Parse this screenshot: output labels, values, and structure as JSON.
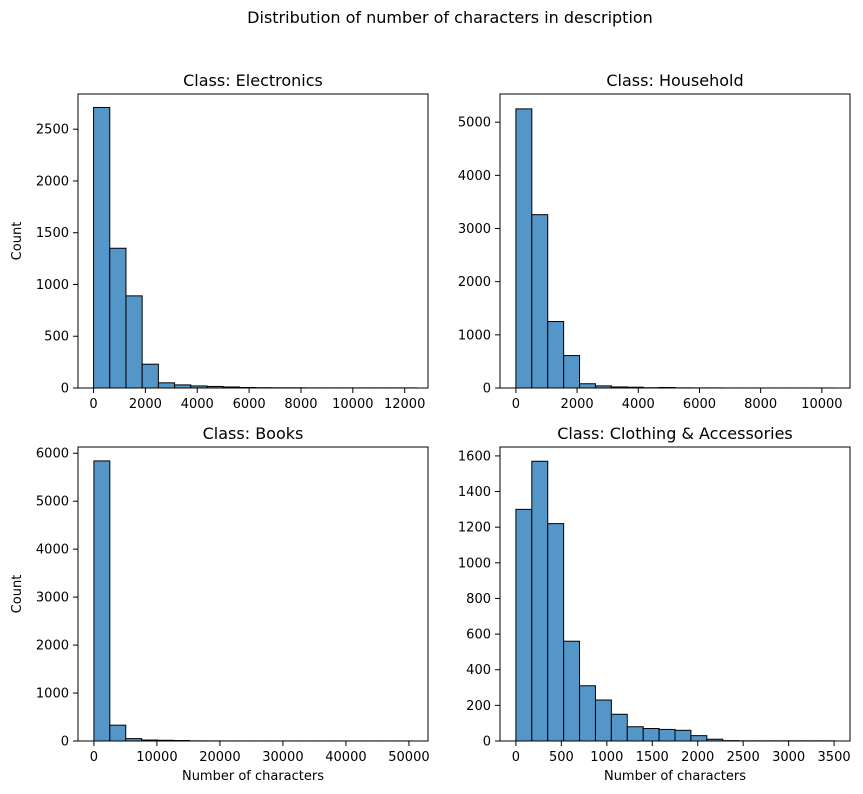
{
  "figure": {
    "suptitle": "Distribution of number of characters in description"
  },
  "style": {
    "bar_fill": "#5596c8",
    "bar_edge": "#000000",
    "axis_color": "#000000"
  },
  "chart_data": [
    {
      "type": "bar",
      "title": "Class: Electronics",
      "xlabel": "",
      "ylabel": "Count",
      "xlim": [
        -600,
        12900
      ],
      "ylim": [
        0,
        2840
      ],
      "xticks": [
        0,
        2000,
        4000,
        6000,
        8000,
        10000,
        12000
      ],
      "yticks": [
        0,
        500,
        1000,
        1500,
        2000,
        2500
      ],
      "bin_edges": [
        0,
        625,
        1250,
        1875,
        2500,
        3125,
        3750,
        4375,
        5000,
        5625,
        6250,
        6875,
        7500,
        8125,
        8750,
        9375,
        10000,
        10625,
        11250,
        11875,
        12500
      ],
      "values": [
        2710,
        1350,
        890,
        230,
        50,
        30,
        20,
        15,
        10,
        5,
        3,
        2,
        2,
        1,
        1,
        1,
        1,
        1,
        1,
        1
      ]
    },
    {
      "type": "bar",
      "title": "Class: Household",
      "xlabel": "",
      "ylabel": "",
      "xlim": [
        -520,
        10920
      ],
      "ylim": [
        0,
        5530
      ],
      "xticks": [
        0,
        2000,
        4000,
        6000,
        8000,
        10000
      ],
      "yticks": [
        0,
        1000,
        2000,
        3000,
        4000,
        5000
      ],
      "bin_edges": [
        0,
        520,
        1040,
        1560,
        2080,
        2600,
        3120,
        3640,
        4160,
        4680,
        5200,
        5720,
        6240,
        6760,
        7280,
        7800,
        8320,
        8840,
        9360,
        9880,
        10400
      ],
      "values": [
        5250,
        3260,
        1250,
        610,
        80,
        40,
        20,
        15,
        5,
        10,
        3,
        2,
        2,
        1,
        1,
        1,
        1,
        1,
        1,
        1
      ]
    },
    {
      "type": "bar",
      "title": "Class: Books",
      "xlabel": "Number of characters",
      "ylabel": "Count",
      "xlim": [
        -2525,
        53025
      ],
      "ylim": [
        0,
        6130
      ],
      "xticks": [
        0,
        10000,
        20000,
        30000,
        40000,
        50000
      ],
      "yticks": [
        0,
        1000,
        2000,
        3000,
        4000,
        5000,
        6000
      ],
      "bin_edges": [
        0,
        2525,
        5050,
        7575,
        10100,
        12625,
        15150,
        17675,
        20200,
        22725,
        25250,
        27775,
        30300,
        32825,
        35350,
        37875,
        40400,
        42925,
        45450,
        47975,
        50500
      ],
      "values": [
        5840,
        330,
        50,
        20,
        15,
        10,
        3,
        2,
        1,
        1,
        1,
        1,
        1,
        1,
        1,
        1,
        1,
        1,
        1,
        1
      ]
    },
    {
      "type": "bar",
      "title": "Class: Clothing & Accessories",
      "xlabel": "Number of characters",
      "ylabel": "",
      "xlim": [
        -175,
        3675
      ],
      "ylim": [
        0,
        1650
      ],
      "xticks": [
        0,
        500,
        1000,
        1500,
        2000,
        2500,
        3000,
        3500
      ],
      "yticks": [
        0,
        200,
        400,
        600,
        800,
        1000,
        1200,
        1400,
        1600
      ],
      "bin_edges": [
        0,
        175,
        350,
        525,
        700,
        875,
        1050,
        1225,
        1400,
        1575,
        1750,
        1925,
        2100,
        2275,
        2450,
        2625,
        2800,
        2975,
        3150,
        3325,
        3500
      ],
      "values": [
        1300,
        1570,
        1220,
        560,
        310,
        230,
        150,
        80,
        70,
        65,
        60,
        30,
        10,
        2,
        1,
        1,
        1,
        1,
        1,
        1
      ]
    }
  ]
}
